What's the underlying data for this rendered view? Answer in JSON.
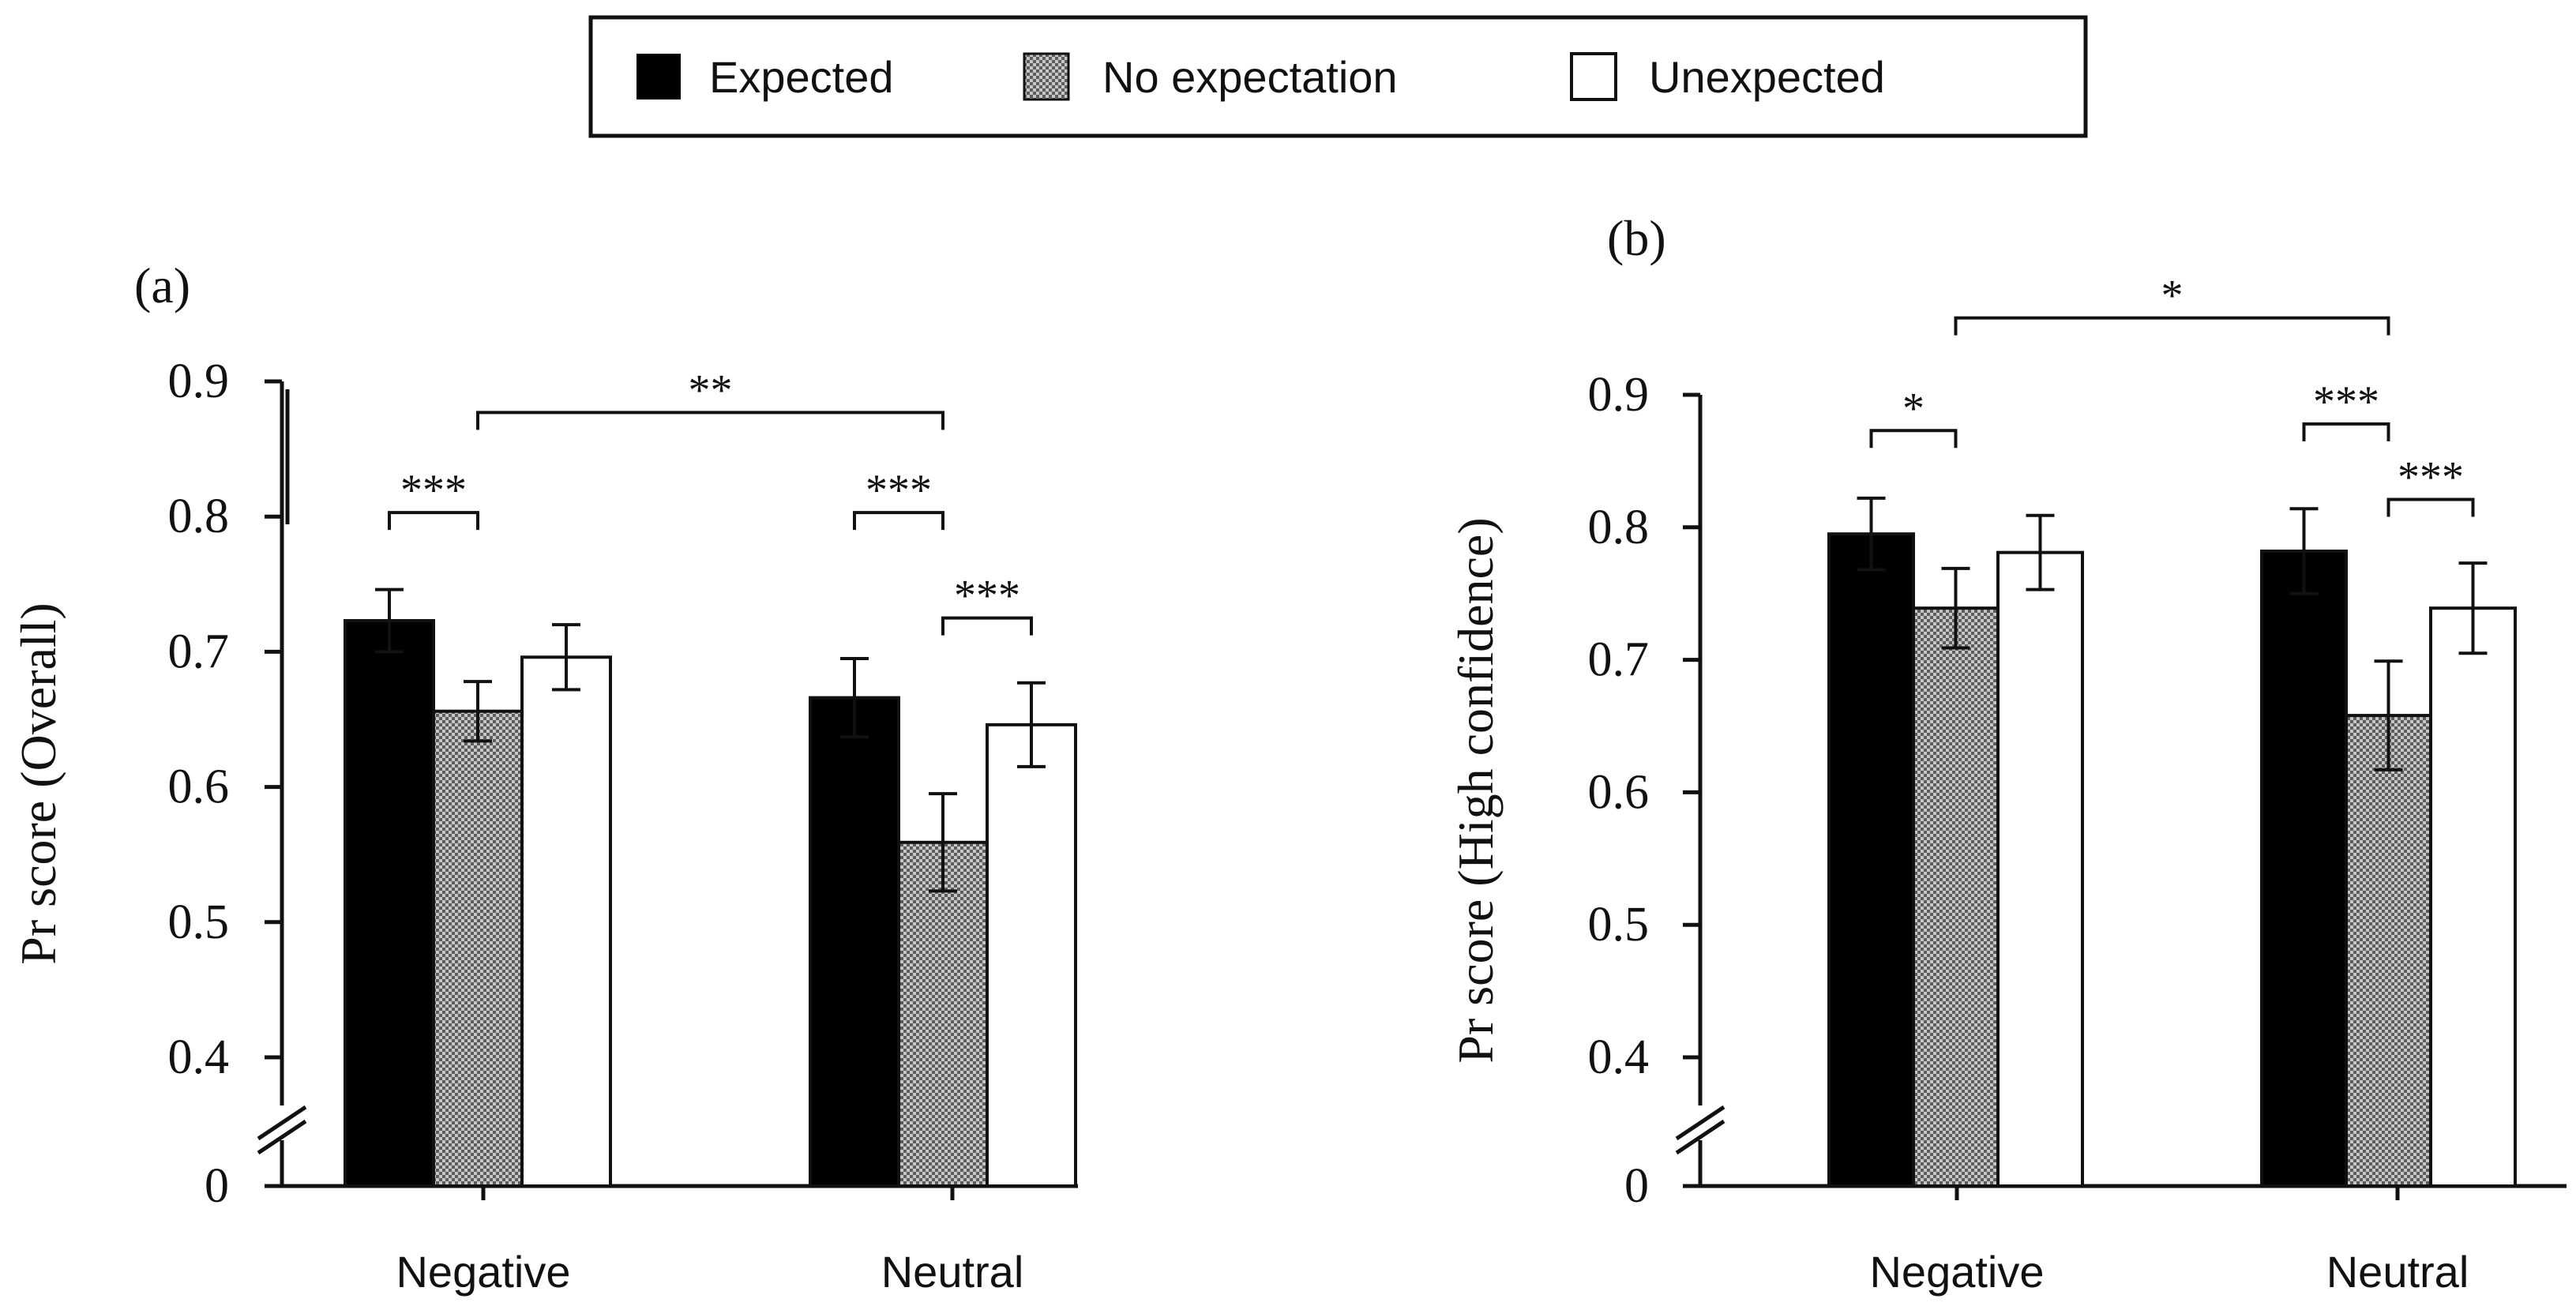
{
  "legend": {
    "items": [
      {
        "label": "Expected",
        "fill": "black"
      },
      {
        "label": "No expectation",
        "fill": "checker"
      },
      {
        "label": "Unexpected",
        "fill": "white"
      }
    ]
  },
  "colors": {
    "ink": "#111111",
    "checker_dark": "#5c5c5c",
    "checker_light": "#c6c6c6",
    "white": "#ffffff"
  },
  "chart_data": [
    {
      "type": "bar",
      "panel_label": "(a)",
      "ylabel": "Pr score (Overall)",
      "xlabel": "",
      "categories": [
        "Negative",
        "Neutral"
      ],
      "series": [
        {
          "name": "Expected",
          "values": [
            0.723,
            0.666
          ],
          "errors": [
            0.023,
            0.029
          ]
        },
        {
          "name": "No expectation",
          "values": [
            0.656,
            0.559
          ],
          "errors": [
            0.022,
            0.036
          ]
        },
        {
          "name": "Unexpected",
          "values": [
            0.696,
            0.646
          ],
          "errors": [
            0.024,
            0.031
          ]
        }
      ],
      "y_ticks": [
        0,
        0.4,
        0.5,
        0.6,
        0.7,
        0.8,
        0.9
      ],
      "y_tick_labels": [
        "0",
        "0.4",
        "0.5",
        "0.6",
        "0.7",
        "0.8",
        "0.9"
      ],
      "ylim": [
        0.3,
        0.9
      ],
      "axis_break": true,
      "significance": [
        {
          "label": "***",
          "from": [
            0,
            0
          ],
          "to": [
            0,
            1
          ],
          "level": 0.803
        },
        {
          "label": "***",
          "from": [
            1,
            0
          ],
          "to": [
            1,
            1
          ],
          "level": 0.803
        },
        {
          "label": "***",
          "from": [
            1,
            1
          ],
          "to": [
            1,
            2
          ],
          "level": 0.725
        },
        {
          "label": "**",
          "from": [
            0,
            1
          ],
          "to": [
            1,
            1
          ],
          "level": 0.877
        }
      ]
    },
    {
      "type": "bar",
      "panel_label": "(b)",
      "ylabel": "Pr score (High confidence)",
      "xlabel": "",
      "categories": [
        "Negative",
        "Neutral"
      ],
      "series": [
        {
          "name": "Expected",
          "values": [
            0.795,
            0.782
          ],
          "errors": [
            0.027,
            0.032
          ]
        },
        {
          "name": "No expectation",
          "values": [
            0.739,
            0.658
          ],
          "errors": [
            0.03,
            0.041
          ]
        },
        {
          "name": "Unexpected",
          "values": [
            0.781,
            0.739
          ],
          "errors": [
            0.028,
            0.034
          ]
        }
      ],
      "y_ticks": [
        0,
        0.4,
        0.5,
        0.6,
        0.7,
        0.8,
        0.9
      ],
      "y_tick_labels": [
        "0",
        "0.4",
        "0.5",
        "0.6",
        "0.7",
        "0.8",
        "0.9"
      ],
      "ylim": [
        0.3,
        0.9
      ],
      "axis_break": true,
      "significance": [
        {
          "label": "*",
          "from": [
            0,
            0
          ],
          "to": [
            0,
            1
          ],
          "level": 0.873
        },
        {
          "label": "***",
          "from": [
            1,
            0
          ],
          "to": [
            1,
            1
          ],
          "level": 0.878
        },
        {
          "label": "***",
          "from": [
            1,
            1
          ],
          "to": [
            1,
            2
          ],
          "level": 0.821
        },
        {
          "label": "*",
          "from": [
            0,
            1
          ],
          "to": [
            1,
            1
          ],
          "level": 0.958
        }
      ]
    }
  ]
}
